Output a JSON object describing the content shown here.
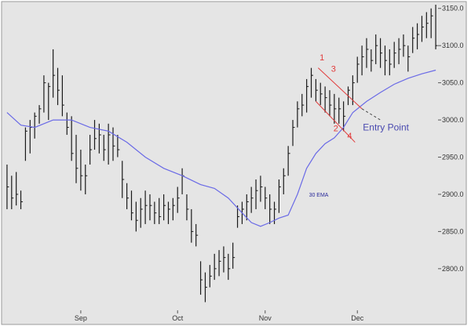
{
  "chart_data": {
    "type": "ohlc-bar",
    "title": "",
    "xlabel": "",
    "ylabel": "",
    "ylim": [
      2744,
      3155
    ],
    "y_ticks": [
      2800,
      2850,
      2900,
      2950,
      3000,
      3050,
      3100,
      3150
    ],
    "y_tick_labels": [
      "2800.0",
      "2850.0",
      "2900.0",
      "2950.0",
      "3000.0",
      "3050.0",
      "3100.0",
      "3150.0"
    ],
    "x_ticks": [
      {
        "label": "Sep",
        "index": 16
      },
      {
        "label": "Oct",
        "index": 37
      },
      {
        "label": "Nov",
        "index": 56
      },
      {
        "label": "Dec",
        "index": 76
      }
    ],
    "bars": [
      {
        "h": 2940,
        "l": 2880,
        "c": 2910
      },
      {
        "h": 2925,
        "l": 2880,
        "c": 2895
      },
      {
        "h": 2930,
        "l": 2885,
        "c": 2900
      },
      {
        "h": 2905,
        "l": 2880,
        "c": 2890
      },
      {
        "h": 2990,
        "l": 2945,
        "c": 2985
      },
      {
        "h": 3000,
        "l": 2955,
        "c": 2990
      },
      {
        "h": 3010,
        "l": 2975,
        "c": 3005
      },
      {
        "h": 3020,
        "l": 2995,
        "c": 3015
      },
      {
        "h": 3060,
        "l": 3010,
        "c": 3050
      },
      {
        "h": 3050,
        "l": 3000,
        "c": 3045
      },
      {
        "h": 3095,
        "l": 3030,
        "c": 3060
      },
      {
        "h": 3070,
        "l": 3020,
        "c": 3040
      },
      {
        "h": 3060,
        "l": 3005,
        "c": 3020
      },
      {
        "h": 3010,
        "l": 2980,
        "c": 2990
      },
      {
        "h": 3005,
        "l": 2945,
        "c": 2955
      },
      {
        "h": 2980,
        "l": 2915,
        "c": 2935
      },
      {
        "h": 2960,
        "l": 2905,
        "c": 2925
      },
      {
        "h": 2940,
        "l": 2900,
        "c": 2925
      },
      {
        "h": 2980,
        "l": 2940,
        "c": 2960
      },
      {
        "h": 3000,
        "l": 2960,
        "c": 2975
      },
      {
        "h": 2995,
        "l": 2955,
        "c": 2980
      },
      {
        "h": 2980,
        "l": 2945,
        "c": 2960
      },
      {
        "h": 2995,
        "l": 2940,
        "c": 2980
      },
      {
        "h": 2990,
        "l": 2945,
        "c": 2965
      },
      {
        "h": 2980,
        "l": 2950,
        "c": 2960
      },
      {
        "h": 2945,
        "l": 2895,
        "c": 2920
      },
      {
        "h": 2915,
        "l": 2880,
        "c": 2895
      },
      {
        "h": 2905,
        "l": 2865,
        "c": 2875
      },
      {
        "h": 2890,
        "l": 2850,
        "c": 2865
      },
      {
        "h": 2895,
        "l": 2855,
        "c": 2880
      },
      {
        "h": 2905,
        "l": 2860,
        "c": 2885
      },
      {
        "h": 2900,
        "l": 2865,
        "c": 2885
      },
      {
        "h": 2890,
        "l": 2860,
        "c": 2875
      },
      {
        "h": 2895,
        "l": 2860,
        "c": 2870
      },
      {
        "h": 2900,
        "l": 2865,
        "c": 2885
      },
      {
        "h": 2890,
        "l": 2860,
        "c": 2880
      },
      {
        "h": 2895,
        "l": 2865,
        "c": 2885
      },
      {
        "h": 2910,
        "l": 2875,
        "c": 2895
      },
      {
        "h": 2935,
        "l": 2900,
        "c": 2925
      },
      {
        "h": 2900,
        "l": 2865,
        "c": 2880
      },
      {
        "h": 2880,
        "l": 2835,
        "c": 2850
      },
      {
        "h": 2860,
        "l": 2830,
        "c": 2845
      },
      {
        "h": 2810,
        "l": 2765,
        "c": 2785
      },
      {
        "h": 2795,
        "l": 2755,
        "c": 2775
      },
      {
        "h": 2805,
        "l": 2775,
        "c": 2790
      },
      {
        "h": 2820,
        "l": 2785,
        "c": 2800
      },
      {
        "h": 2825,
        "l": 2790,
        "c": 2810
      },
      {
        "h": 2830,
        "l": 2795,
        "c": 2815
      },
      {
        "h": 2820,
        "l": 2785,
        "c": 2800
      },
      {
        "h": 2835,
        "l": 2800,
        "c": 2815
      },
      {
        "h": 2885,
        "l": 2855,
        "c": 2870
      },
      {
        "h": 2890,
        "l": 2860,
        "c": 2880
      },
      {
        "h": 2900,
        "l": 2865,
        "c": 2890
      },
      {
        "h": 2910,
        "l": 2875,
        "c": 2895
      },
      {
        "h": 2920,
        "l": 2880,
        "c": 2905
      },
      {
        "h": 2925,
        "l": 2890,
        "c": 2910
      },
      {
        "h": 2910,
        "l": 2880,
        "c": 2895
      },
      {
        "h": 2900,
        "l": 2860,
        "c": 2880
      },
      {
        "h": 2890,
        "l": 2860,
        "c": 2880
      },
      {
        "h": 2920,
        "l": 2875,
        "c": 2910
      },
      {
        "h": 2935,
        "l": 2900,
        "c": 2925
      },
      {
        "h": 2965,
        "l": 2925,
        "c": 2955
      },
      {
        "h": 3000,
        "l": 2965,
        "c": 2990
      },
      {
        "h": 3025,
        "l": 2990,
        "c": 3015
      },
      {
        "h": 3035,
        "l": 3005,
        "c": 3020
      },
      {
        "h": 3055,
        "l": 3010,
        "c": 3045
      },
      {
        "h": 3070,
        "l": 3030,
        "c": 3060
      },
      {
        "h": 3055,
        "l": 3025,
        "c": 3040
      },
      {
        "h": 3050,
        "l": 3020,
        "c": 3035
      },
      {
        "h": 3045,
        "l": 3010,
        "c": 3030
      },
      {
        "h": 3040,
        "l": 3005,
        "c": 3020
      },
      {
        "h": 3035,
        "l": 2995,
        "c": 3015
      },
      {
        "h": 3030,
        "l": 2995,
        "c": 3015
      },
      {
        "h": 3025,
        "l": 2985,
        "c": 3005
      },
      {
        "h": 3045,
        "l": 3020,
        "c": 3040
      },
      {
        "h": 3060,
        "l": 3020,
        "c": 3050
      },
      {
        "h": 3085,
        "l": 3050,
        "c": 3075
      },
      {
        "h": 3100,
        "l": 3060,
        "c": 3085
      },
      {
        "h": 3110,
        "l": 3070,
        "c": 3095
      },
      {
        "h": 3095,
        "l": 3065,
        "c": 3080
      },
      {
        "h": 3115,
        "l": 3075,
        "c": 3100
      },
      {
        "h": 3110,
        "l": 3070,
        "c": 3090
      },
      {
        "h": 3100,
        "l": 3060,
        "c": 3080
      },
      {
        "h": 3095,
        "l": 3060,
        "c": 3075
      },
      {
        "h": 3105,
        "l": 3070,
        "c": 3090
      },
      {
        "h": 3110,
        "l": 3075,
        "c": 3095
      },
      {
        "h": 3115,
        "l": 3085,
        "c": 3100
      },
      {
        "h": 3100,
        "l": 3065,
        "c": 3085
      },
      {
        "h": 3125,
        "l": 3090,
        "c": 3110
      },
      {
        "h": 3130,
        "l": 3095,
        "c": 3115
      },
      {
        "h": 3140,
        "l": 3105,
        "c": 3125
      },
      {
        "h": 3145,
        "l": 3110,
        "c": 3130
      },
      {
        "h": 3150,
        "l": 3110,
        "c": 3140
      },
      {
        "h": 3155,
        "l": 3095,
        "c": 3100
      }
    ],
    "ema": {
      "label": "30 EMA",
      "points": [
        [
          0,
          3010
        ],
        [
          3,
          2993
        ],
        [
          6,
          2990
        ],
        [
          10,
          3000
        ],
        [
          14,
          3000
        ],
        [
          18,
          2990
        ],
        [
          22,
          2985
        ],
        [
          26,
          2970
        ],
        [
          30,
          2950
        ],
        [
          34,
          2935
        ],
        [
          38,
          2925
        ],
        [
          42,
          2913
        ],
        [
          45,
          2908
        ],
        [
          48,
          2895
        ],
        [
          51,
          2875
        ],
        [
          53,
          2862
        ],
        [
          55,
          2857
        ],
        [
          57,
          2862
        ],
        [
          59,
          2868
        ],
        [
          61,
          2872
        ],
        [
          63,
          2900
        ],
        [
          65,
          2935
        ],
        [
          67,
          2955
        ],
        [
          69,
          2968
        ],
        [
          71,
          2976
        ],
        [
          73,
          2990
        ],
        [
          75,
          3010
        ],
        [
          78,
          3025
        ],
        [
          81,
          3037
        ],
        [
          84,
          3048
        ],
        [
          87,
          3056
        ],
        [
          90,
          3062
        ],
        [
          93,
          3067
        ]
      ]
    },
    "annotations": {
      "labels": [
        {
          "text": "1",
          "x": 67.8,
          "y": 3080
        },
        {
          "text": "3",
          "x": 70.3,
          "y": 3065
        },
        {
          "text": "2",
          "x": 70.8,
          "y": 2985
        },
        {
          "text": "4",
          "x": 73.8,
          "y": 2975
        },
        {
          "text": "Entry Point",
          "x": 77.2,
          "y": 2986
        },
        {
          "text": "30 EMA",
          "x": 65.5,
          "y": 2897
        }
      ],
      "upper_channel": [
        [
          67.5,
          3070
        ],
        [
          77,
          3015
        ]
      ],
      "lower_channel": [
        [
          67,
          3025
        ],
        [
          75.5,
          2970
        ]
      ],
      "entry_line": [
        [
          77,
          3015
        ],
        [
          81,
          3000
        ]
      ]
    }
  }
}
